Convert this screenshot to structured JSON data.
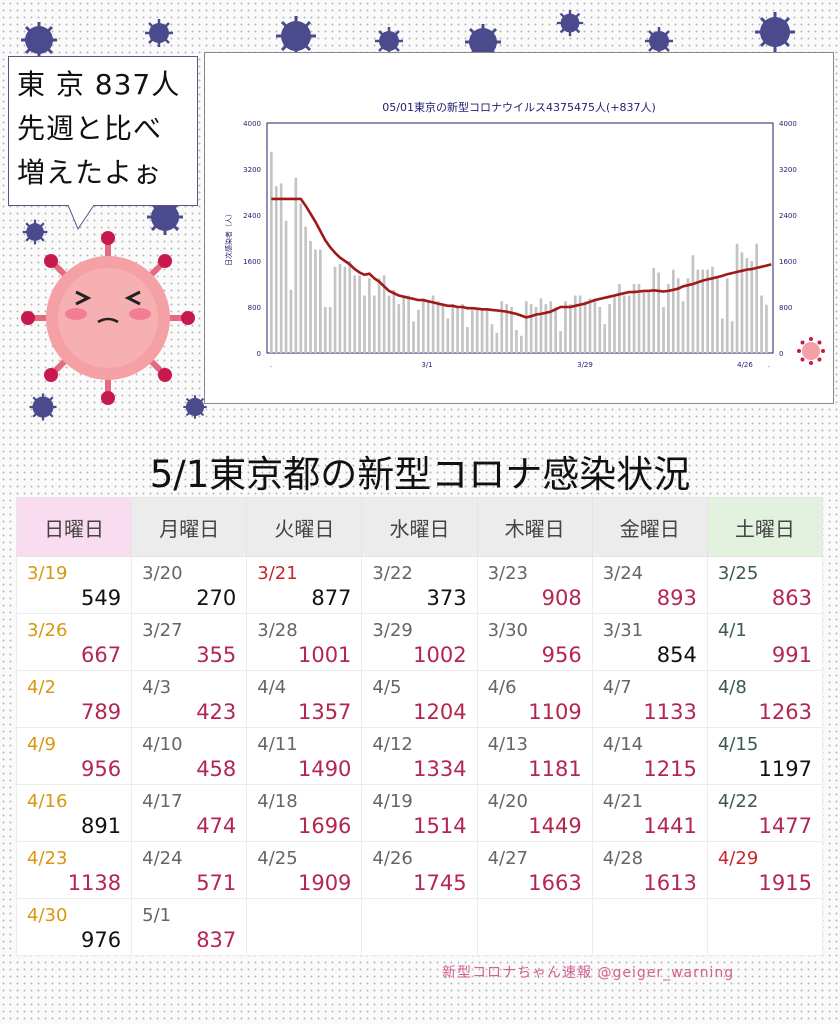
{
  "bubble": {
    "lines": [
      "東 京 837人",
      "先週と比べ",
      "増えたよぉ"
    ]
  },
  "chart_data": {
    "type": "bar",
    "title": "05/01東京の新型コロナウイルス4375475人(+837人)",
    "ylabel": "日次感染者（人）",
    "ylim": [
      0,
      4000
    ],
    "yticks": [
      0,
      800,
      1600,
      2400,
      3200,
      4000
    ],
    "xtick_labels": [
      ".",
      "3/1",
      "3/29",
      "4/26",
      "."
    ],
    "series": [
      {
        "name": "日次感染者",
        "values": [
          3500,
          2900,
          2950,
          2300,
          1100,
          3050,
          2600,
          2200,
          1950,
          1800,
          1800,
          800,
          800,
          1500,
          1550,
          1500,
          1600,
          1350,
          1350,
          1000,
          1300,
          1000,
          1300,
          1350,
          1000,
          1100,
          850,
          1000,
          1000,
          550,
          750,
          950,
          900,
          1000,
          900,
          850,
          600,
          850,
          800,
          850,
          450,
          750,
          750,
          750,
          750,
          500,
          350,
          900,
          850,
          800,
          400,
          300,
          900,
          850,
          800,
          950,
          850,
          900,
          800,
          380,
          900,
          850,
          1000,
          1000,
          900,
          950,
          950,
          800,
          500,
          850,
          1000,
          1200,
          1000,
          1000,
          1200,
          1200,
          1050,
          1050,
          1480,
          1400,
          800,
          1200,
          1450,
          1300,
          900,
          1300,
          1700,
          1450,
          1450,
          1450,
          1500,
          1300,
          600,
          1300,
          550,
          1900,
          1750,
          1650,
          1600,
          1900,
          1000,
          840
        ]
      },
      {
        "name": "7日平均",
        "values": [
          2680,
          2680,
          2680,
          2680,
          2680,
          2680,
          2680,
          2560,
          2420,
          2280,
          2120,
          1960,
          1840,
          1740,
          1660,
          1600,
          1540,
          1460,
          1400,
          1360,
          1380,
          1300,
          1240,
          1160,
          1080,
          1040,
          1000,
          980,
          960,
          940,
          920,
          920,
          900,
          880,
          860,
          840,
          820,
          820,
          800,
          800,
          780,
          780,
          770,
          760,
          760,
          750,
          740,
          730,
          720,
          700,
          680,
          650,
          620,
          640,
          670,
          680,
          700,
          720,
          760,
          800,
          800,
          800,
          820,
          840,
          860,
          890,
          920,
          940,
          960,
          980,
          1000,
          1020,
          1040,
          1060,
          1060,
          1070,
          1080,
          1080,
          1090,
          1080,
          1070,
          1080,
          1100,
          1120,
          1160,
          1180,
          1200,
          1230,
          1260,
          1280,
          1300,
          1320,
          1340,
          1370,
          1390,
          1410,
          1430,
          1450,
          1460,
          1480,
          1500,
          1520,
          1540
        ]
      }
    ]
  },
  "main_title": "5/1東京都の新型コロナ感染状況",
  "weekdays": [
    "日曜日",
    "月曜日",
    "火曜日",
    "水曜日",
    "木曜日",
    "金曜日",
    "土曜日"
  ],
  "calendar": [
    [
      {
        "d": "3/19",
        "v": "549",
        "dc": "sun",
        "vc": "black"
      },
      {
        "d": "3/20",
        "v": "270",
        "vc": "black"
      },
      {
        "d": "3/21",
        "v": "877",
        "dc": "hol",
        "vc": "black"
      },
      {
        "d": "3/22",
        "v": "373",
        "vc": "black"
      },
      {
        "d": "3/23",
        "v": "908"
      },
      {
        "d": "3/24",
        "v": "893"
      },
      {
        "d": "3/25",
        "v": "863",
        "dc": "sat"
      }
    ],
    [
      {
        "d": "3/26",
        "v": "667",
        "dc": "sun"
      },
      {
        "d": "3/27",
        "v": "355"
      },
      {
        "d": "3/28",
        "v": "1001"
      },
      {
        "d": "3/29",
        "v": "1002"
      },
      {
        "d": "3/30",
        "v": "956"
      },
      {
        "d": "3/31",
        "v": "854",
        "vc": "black"
      },
      {
        "d": "4/1",
        "v": "991",
        "dc": "sat"
      }
    ],
    [
      {
        "d": "4/2",
        "v": "789",
        "dc": "sun"
      },
      {
        "d": "4/3",
        "v": "423"
      },
      {
        "d": "4/4",
        "v": "1357"
      },
      {
        "d": "4/5",
        "v": "1204"
      },
      {
        "d": "4/6",
        "v": "1109"
      },
      {
        "d": "4/7",
        "v": "1133"
      },
      {
        "d": "4/8",
        "v": "1263",
        "dc": "sat"
      }
    ],
    [
      {
        "d": "4/9",
        "v": "956",
        "dc": "sun"
      },
      {
        "d": "4/10",
        "v": "458"
      },
      {
        "d": "4/11",
        "v": "1490"
      },
      {
        "d": "4/12",
        "v": "1334"
      },
      {
        "d": "4/13",
        "v": "1181"
      },
      {
        "d": "4/14",
        "v": "1215"
      },
      {
        "d": "4/15",
        "v": "1197",
        "dc": "sat",
        "vc": "black"
      }
    ],
    [
      {
        "d": "4/16",
        "v": "891",
        "dc": "sun",
        "vc": "black"
      },
      {
        "d": "4/17",
        "v": "474"
      },
      {
        "d": "4/18",
        "v": "1696"
      },
      {
        "d": "4/19",
        "v": "1514"
      },
      {
        "d": "4/20",
        "v": "1449"
      },
      {
        "d": "4/21",
        "v": "1441"
      },
      {
        "d": "4/22",
        "v": "1477",
        "dc": "sat"
      }
    ],
    [
      {
        "d": "4/23",
        "v": "1138",
        "dc": "sun"
      },
      {
        "d": "4/24",
        "v": "571"
      },
      {
        "d": "4/25",
        "v": "1909"
      },
      {
        "d": "4/26",
        "v": "1745"
      },
      {
        "d": "4/27",
        "v": "1663"
      },
      {
        "d": "4/28",
        "v": "1613"
      },
      {
        "d": "4/29",
        "v": "1915",
        "dc": "hol"
      }
    ],
    [
      {
        "d": "4/30",
        "v": "976",
        "dc": "sun",
        "vc": "black"
      },
      {
        "d": "5/1",
        "v": "837"
      },
      {
        "d": "",
        "v": ""
      },
      {
        "d": "",
        "v": ""
      },
      {
        "d": "",
        "v": ""
      },
      {
        "d": "",
        "v": ""
      },
      {
        "d": "",
        "v": ""
      }
    ]
  ],
  "credit": "新型コロナちゃん速報  @geiger_warning",
  "colors": {
    "bar": "#c4c4c4",
    "avg": "#a01818",
    "axis": "#22226e",
    "value": "#b4264f",
    "virus": "#4a4a8c",
    "mascot": "#f09aa0"
  }
}
